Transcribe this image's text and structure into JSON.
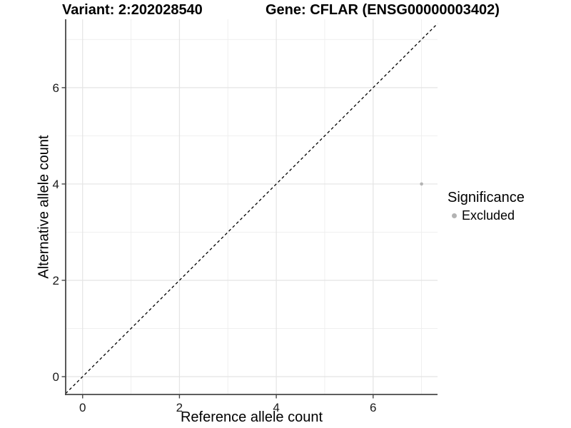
{
  "chart_data": {
    "type": "scatter",
    "titles": [
      "Variant: 2:202028540",
      "Gene: CFLAR (ENSG00000003402)"
    ],
    "xlabel": "Reference allele count",
    "ylabel": "Alternative allele count",
    "xlim": [
      -0.35,
      7.33
    ],
    "ylim": [
      -0.37,
      7.42
    ],
    "x_ticks": [
      0,
      2,
      4,
      6
    ],
    "y_ticks": [
      0,
      2,
      4,
      6
    ],
    "x_minor_ticks": [
      1,
      3,
      5,
      7
    ],
    "y_minor_ticks": [
      1,
      3,
      5,
      7
    ],
    "grid": "major and minor gridlines on white background",
    "points": [
      {
        "x": 7,
        "y": 4,
        "significance": "Excluded"
      }
    ],
    "identity_line": {
      "slope": 1,
      "intercept": 0,
      "style": "dashed",
      "color": "#000000"
    },
    "legend": {
      "title": "Significance",
      "position": "right",
      "entries": [
        {
          "label": "Excluded",
          "color": "#b3b3b3"
        }
      ]
    },
    "colors": {
      "point": "#b3b3b3",
      "grid_major": "#e4e4e4",
      "grid_minor": "#efefef",
      "axis_line": "#474747",
      "tick_label": "#1a1a1a",
      "title_text": "#000000"
    }
  }
}
